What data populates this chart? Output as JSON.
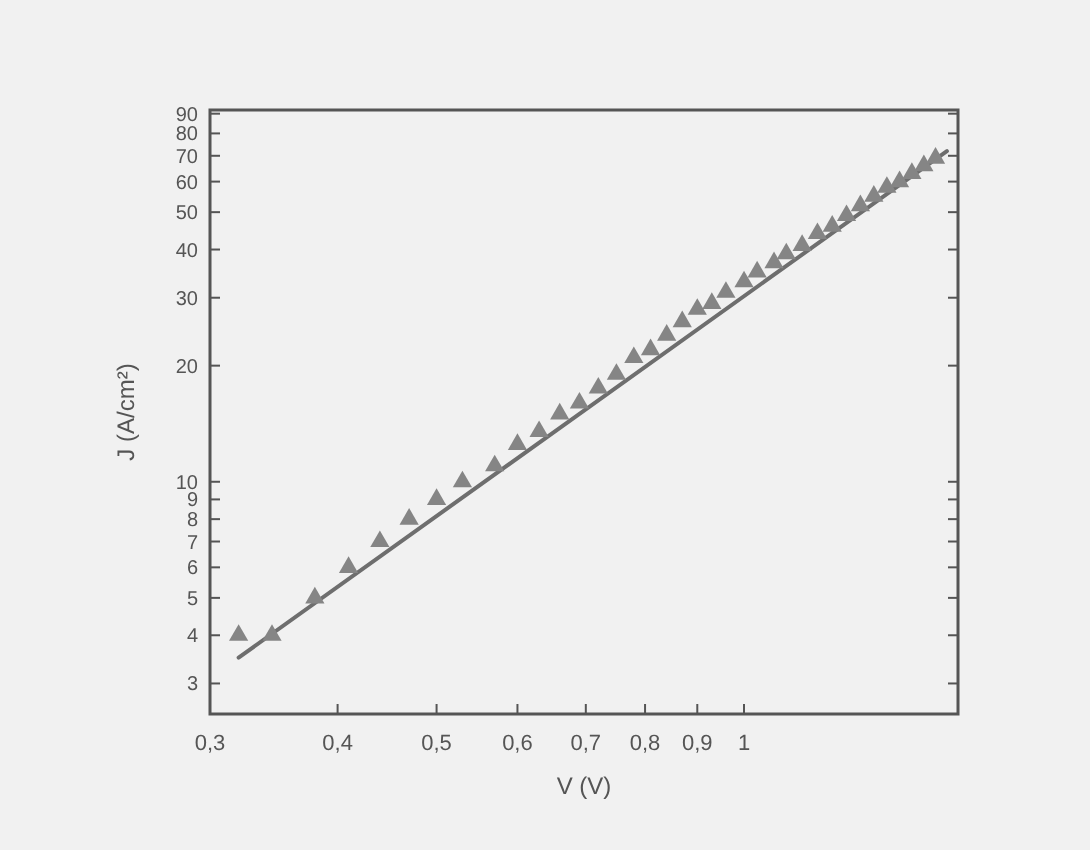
{
  "chart_data": {
    "type": "scatter",
    "xlabel": "V (V)",
    "ylabel": "J (A/cm²)",
    "log": "xy",
    "marker": "triangle",
    "grid": false,
    "xlim": [
      0.3,
      1.62
    ],
    "xticks": [
      {
        "value": 0.3,
        "label": "0,3"
      },
      {
        "value": 0.4,
        "label": "0,4"
      },
      {
        "value": 0.5,
        "label": "0,5"
      },
      {
        "value": 0.6,
        "label": "0,6"
      },
      {
        "value": 0.7,
        "label": "0,7"
      },
      {
        "value": 0.8,
        "label": "0,8"
      },
      {
        "value": 0.9,
        "label": "0,9"
      },
      1
    ],
    "ylim": [
      2.5,
      92
    ],
    "yticks": [
      3,
      4,
      5,
      6,
      7,
      8,
      9,
      10,
      20,
      30,
      40,
      50,
      60,
      70,
      80,
      90
    ],
    "series": [
      {
        "type": "line",
        "color": "#6e6e6e",
        "marker": "none",
        "x": [
          0.32,
          1.58
        ],
        "values": [
          3.5,
          72
        ]
      },
      {
        "color": "#858585",
        "x": [
          0.32,
          0.345,
          0.38,
          0.41,
          0.44,
          0.47,
          0.5,
          0.53,
          0.57,
          0.6,
          0.63,
          0.66,
          0.69,
          0.72,
          0.75,
          0.78,
          0.81,
          0.84,
          0.87,
          0.9,
          0.93,
          0.96,
          1.0,
          1.03,
          1.07,
          1.1,
          1.14,
          1.18,
          1.22,
          1.26,
          1.3,
          1.34,
          1.38,
          1.42,
          1.46,
          1.5,
          1.54
        ],
        "values": [
          4.0,
          4.0,
          5.0,
          6.0,
          7.0,
          8.0,
          9.0,
          10,
          11,
          12.5,
          13.5,
          15,
          16,
          17.5,
          19,
          21,
          22,
          24,
          26,
          28,
          29,
          31,
          33,
          35,
          37,
          39,
          41,
          44,
          46,
          49,
          52,
          55,
          58,
          60,
          63,
          66,
          69
        ]
      }
    ]
  }
}
